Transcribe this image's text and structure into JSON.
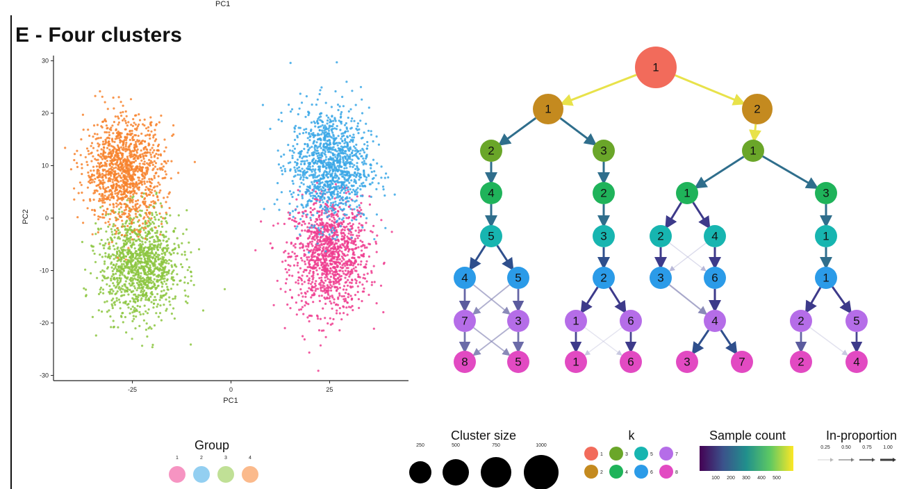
{
  "figure": {
    "top_axis_label": "PC1",
    "panel_title": "E - Four clusters"
  },
  "chart_data": [
    {
      "type": "scatter",
      "xlabel": "PC1",
      "ylabel": "PC2",
      "xlim": [
        -45,
        45
      ],
      "ylim": [
        -31,
        31
      ],
      "xticks": [
        -25,
        0,
        25
      ],
      "yticks": [
        30,
        20,
        10,
        0,
        -10,
        -20,
        -30
      ],
      "grid": false,
      "legend": {
        "title": "Group",
        "placement": "bottom",
        "entries": [
          "1",
          "2",
          "3",
          "4"
        ]
      },
      "series": [
        {
          "name": "1",
          "color": "#ef3d8f",
          "center": [
            25,
            -7
          ],
          "spread": [
            5,
            5.5
          ],
          "n": 1200
        },
        {
          "name": "2",
          "color": "#3aa7e6",
          "center": [
            25,
            10
          ],
          "spread": [
            5,
            5.5
          ],
          "n": 1200
        },
        {
          "name": "3",
          "color": "#8cc63f",
          "center": [
            -23,
            -9
          ],
          "spread": [
            5,
            5
          ],
          "n": 1200
        },
        {
          "name": "4",
          "color": "#f7822d",
          "center": [
            -27,
            9
          ],
          "spread": [
            5,
            5
          ],
          "n": 1200
        }
      ],
      "group_colors": [
        "#ef3d8f",
        "#3aa7e6",
        "#8cc63f",
        "#f7822d"
      ]
    },
    {
      "type": "tree",
      "nodes": [
        {
          "id": "n0",
          "label": "1",
          "k": 1
        },
        {
          "id": "n1",
          "label": "1",
          "k": 2
        },
        {
          "id": "n2",
          "label": "2",
          "k": 2
        },
        {
          "id": "n3",
          "label": "2",
          "k": 3
        },
        {
          "id": "n4",
          "label": "3",
          "k": 3
        },
        {
          "id": "n5",
          "label": "1",
          "k": 3
        },
        {
          "id": "n6",
          "label": "4",
          "k": 4
        },
        {
          "id": "n7",
          "label": "2",
          "k": 4
        },
        {
          "id": "n8",
          "label": "1",
          "k": 4
        },
        {
          "id": "n9",
          "label": "3",
          "k": 4
        },
        {
          "id": "n10",
          "label": "5",
          "k": 5
        },
        {
          "id": "n11",
          "label": "3",
          "k": 5
        },
        {
          "id": "n12",
          "label": "2",
          "k": 5
        },
        {
          "id": "n13",
          "label": "4",
          "k": 5
        },
        {
          "id": "n14",
          "label": "1",
          "k": 5
        },
        {
          "id": "n15",
          "label": "4",
          "k": 6
        },
        {
          "id": "n16",
          "label": "5",
          "k": 6
        },
        {
          "id": "n17",
          "label": "2",
          "k": 6
        },
        {
          "id": "n18",
          "label": "3",
          "k": 6
        },
        {
          "id": "n19",
          "label": "6",
          "k": 6
        },
        {
          "id": "n20",
          "label": "1",
          "k": 6
        },
        {
          "id": "n21",
          "label": "7",
          "k": 7
        },
        {
          "id": "n22",
          "label": "3",
          "k": 7
        },
        {
          "id": "n23",
          "label": "1",
          "k": 7
        },
        {
          "id": "n24",
          "label": "6",
          "k": 7
        },
        {
          "id": "n25",
          "label": "4",
          "k": 7
        },
        {
          "id": "n26",
          "label": "2",
          "k": 7
        },
        {
          "id": "n27",
          "label": "5",
          "k": 7
        },
        {
          "id": "n28",
          "label": "8",
          "k": 8
        },
        {
          "id": "n29",
          "label": "5",
          "k": 8
        },
        {
          "id": "n30",
          "label": "1",
          "k": 8
        },
        {
          "id": "n31",
          "label": "6",
          "k": 8
        },
        {
          "id": "n32",
          "label": "3",
          "k": 8
        },
        {
          "id": "n33",
          "label": "7",
          "k": 8
        },
        {
          "id": "n34",
          "label": "2",
          "k": 8
        },
        {
          "id": "n35",
          "label": "4",
          "k": 8
        }
      ],
      "edges": [
        {
          "from": "n0",
          "to": "n1",
          "prop": 1.0,
          "color": "#e8e24a"
        },
        {
          "from": "n0",
          "to": "n2",
          "prop": 1.0,
          "color": "#e8e24a"
        },
        {
          "from": "n1",
          "to": "n3",
          "prop": 1.0,
          "color": "#2f6e8c"
        },
        {
          "from": "n1",
          "to": "n4",
          "prop": 1.0,
          "color": "#2f6e8c"
        },
        {
          "from": "n2",
          "to": "n5",
          "prop": 1.0,
          "color": "#e8e24a"
        },
        {
          "from": "n3",
          "to": "n6",
          "prop": 1.0,
          "color": "#2f6e8c"
        },
        {
          "from": "n4",
          "to": "n7",
          "prop": 1.0,
          "color": "#2f6e8c"
        },
        {
          "from": "n5",
          "to": "n8",
          "prop": 1.0,
          "color": "#2f6e8c"
        },
        {
          "from": "n5",
          "to": "n9",
          "prop": 1.0,
          "color": "#2f6e8c"
        },
        {
          "from": "n6",
          "to": "n10",
          "prop": 1.0,
          "color": "#2f6e8c"
        },
        {
          "from": "n7",
          "to": "n11",
          "prop": 1.0,
          "color": "#2f6e8c"
        },
        {
          "from": "n8",
          "to": "n12",
          "prop": 1.0,
          "color": "#3d3a8a"
        },
        {
          "from": "n8",
          "to": "n13",
          "prop": 1.0,
          "color": "#3d3a8a"
        },
        {
          "from": "n9",
          "to": "n14",
          "prop": 1.0,
          "color": "#2f6e8c"
        },
        {
          "from": "n10",
          "to": "n15",
          "prop": 1.0,
          "color": "#2f4f8c"
        },
        {
          "from": "n10",
          "to": "n16",
          "prop": 1.0,
          "color": "#2f4f8c"
        },
        {
          "from": "n11",
          "to": "n17",
          "prop": 1.0,
          "color": "#2f4f8c"
        },
        {
          "from": "n12",
          "to": "n18",
          "prop": 1.0,
          "color": "#3d3a8a"
        },
        {
          "from": "n13",
          "to": "n19",
          "prop": 1.0,
          "color": "#3d3a8a"
        },
        {
          "from": "n12",
          "to": "n19",
          "prop": 0.25,
          "color": "#b8b8d8"
        },
        {
          "from": "n13",
          "to": "n18",
          "prop": 0.25,
          "color": "#b8b8d8"
        },
        {
          "from": "n14",
          "to": "n20",
          "prop": 1.0,
          "color": "#2f6e8c"
        },
        {
          "from": "n15",
          "to": "n21",
          "prop": 0.9,
          "color": "#5b5b9e"
        },
        {
          "from": "n16",
          "to": "n22",
          "prop": 0.9,
          "color": "#5b5b9e"
        },
        {
          "from": "n15",
          "to": "n22",
          "prop": 0.5,
          "color": "#8a8ab8"
        },
        {
          "from": "n16",
          "to": "n21",
          "prop": 0.5,
          "color": "#8a8ab8"
        },
        {
          "from": "n17",
          "to": "n23",
          "prop": 1.0,
          "color": "#3d3a8a"
        },
        {
          "from": "n17",
          "to": "n24",
          "prop": 1.0,
          "color": "#3d3a8a"
        },
        {
          "from": "n18",
          "to": "n25",
          "prop": 0.6,
          "color": "#8a8ab8"
        },
        {
          "from": "n19",
          "to": "n25",
          "prop": 1.0,
          "color": "#3d3a8a"
        },
        {
          "from": "n20",
          "to": "n26",
          "prop": 1.0,
          "color": "#3d3a8a"
        },
        {
          "from": "n20",
          "to": "n27",
          "prop": 1.0,
          "color": "#3d3a8a"
        },
        {
          "from": "n21",
          "to": "n28",
          "prop": 0.9,
          "color": "#6b6ba8"
        },
        {
          "from": "n22",
          "to": "n29",
          "prop": 0.9,
          "color": "#6b6ba8"
        },
        {
          "from": "n21",
          "to": "n29",
          "prop": 0.5,
          "color": "#8a8ab8"
        },
        {
          "from": "n22",
          "to": "n28",
          "prop": 0.5,
          "color": "#8a8ab8"
        },
        {
          "from": "n23",
          "to": "n30",
          "prop": 0.9,
          "color": "#3d3a8a"
        },
        {
          "from": "n24",
          "to": "n31",
          "prop": 0.9,
          "color": "#3d3a8a"
        },
        {
          "from": "n23",
          "to": "n31",
          "prop": 0.25,
          "color": "#c8c8e0"
        },
        {
          "from": "n24",
          "to": "n30",
          "prop": 0.25,
          "color": "#c8c8e0"
        },
        {
          "from": "n25",
          "to": "n32",
          "prop": 1.0,
          "color": "#2f4f8c"
        },
        {
          "from": "n25",
          "to": "n33",
          "prop": 1.0,
          "color": "#2f4f8c"
        },
        {
          "from": "n26",
          "to": "n34",
          "prop": 0.9,
          "color": "#5b5b9e"
        },
        {
          "from": "n27",
          "to": "n35",
          "prop": 0.9,
          "color": "#3d3a8a"
        },
        {
          "from": "n26",
          "to": "n35",
          "prop": 0.3,
          "color": "#c8c8e0"
        }
      ],
      "k_colors": {
        "1": "#f26b5b",
        "2": "#c48a1f",
        "3": "#6aa629",
        "4": "#1fb35a",
        "5": "#17b5b0",
        "6": "#2b9be8",
        "7": "#b56de8",
        "8": "#e24ac2"
      }
    }
  ],
  "legends": {
    "group": {
      "title": "Group",
      "labels": [
        "1",
        "2",
        "3",
        "4"
      ]
    },
    "cluster_size": {
      "title": "Cluster size",
      "tick_labels": [
        "250",
        "500",
        "750",
        "1000"
      ],
      "values": [
        250,
        500,
        750,
        1000
      ]
    },
    "k": {
      "title": "k",
      "labels": [
        "1",
        "2",
        "3",
        "4",
        "5",
        "6",
        "7",
        "8"
      ]
    },
    "sample_count": {
      "title": "Sample count",
      "tick_labels": [
        "100",
        "200",
        "300",
        "400",
        "500"
      ],
      "stops": [
        "#440154",
        "#3b528b",
        "#21908c",
        "#5dc863",
        "#fde725"
      ]
    },
    "in_proportion": {
      "title": "In-proportion",
      "tick_labels": [
        "0.25",
        "0.50",
        "0.75",
        "1.00"
      ]
    }
  }
}
